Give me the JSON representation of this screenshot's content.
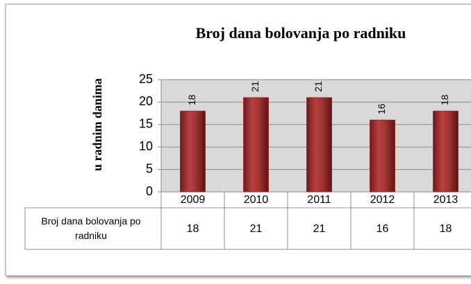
{
  "chart_data": {
    "type": "bar",
    "title": "Broj dana bolovanja po radniku",
    "y_label": "u radnim danima",
    "categories": [
      "2009",
      "2010",
      "2011",
      "2012",
      "2013"
    ],
    "series": [
      {
        "name": "Broj dana bolovanja po radniku",
        "color": "#9b2d2d",
        "values": [
          18,
          21,
          21,
          16,
          18
        ]
      }
    ],
    "ylim": [
      0,
      25
    ],
    "yticks": [
      0,
      5,
      10,
      15,
      20,
      25
    ],
    "grid": true
  }
}
